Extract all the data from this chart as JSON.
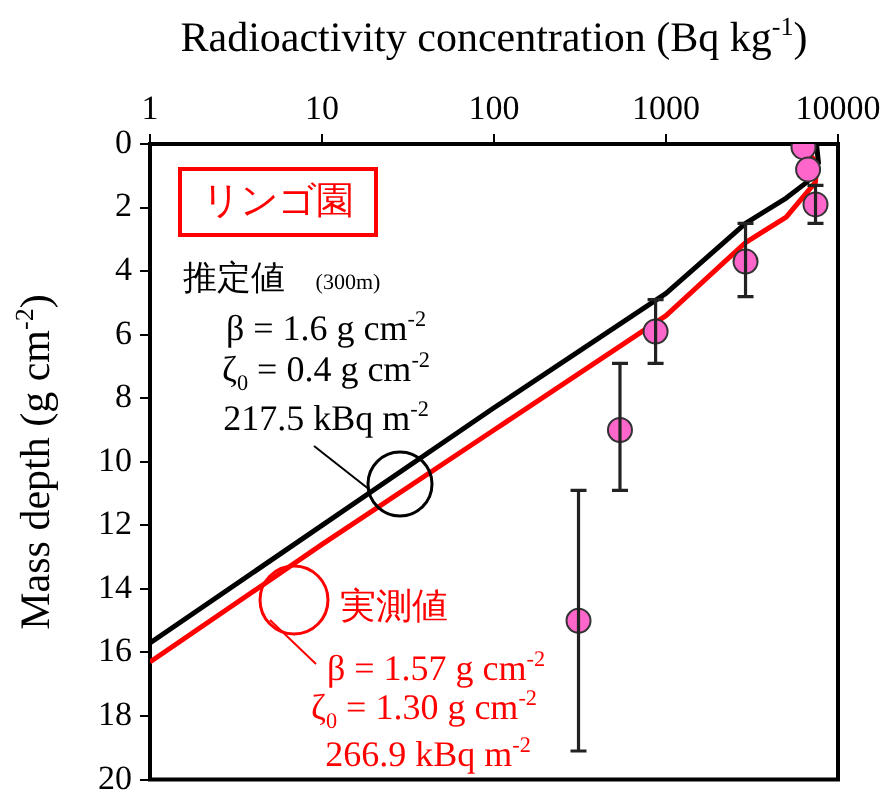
{
  "chart_data": {
    "type": "scatter",
    "xlabel": "Radioactivity concentration (Bq kg$^{-1}$)",
    "ylabel": "Mass depth (g cm$^{-2}$)",
    "log": "x",
    "xlim": [
      1,
      10000
    ],
    "xticks": [
      1,
      10,
      100,
      1000,
      10000
    ],
    "ylim": [
      20,
      0
    ],
    "yticks": [
      0,
      2,
      4,
      6,
      8,
      10,
      12,
      14,
      16,
      18,
      20
    ],
    "grid": false,
    "legend": false,
    "series": [
      {
        "type": "line",
        "marker": "none",
        "color": "#000000",
        "x": [
          1,
          10,
          100,
          1000,
          2900,
          5000,
          6600,
          7700,
          7500
        ],
        "values": [
          15.7,
          12.0,
          8.3,
          4.7,
          2.5,
          1.7,
          1.2,
          0.6,
          0
        ]
      },
      {
        "type": "line",
        "marker": "none",
        "color": "#ff0000",
        "x": [
          1,
          10,
          100,
          1000,
          2900,
          5000,
          7400,
          7500,
          6800,
          6000
        ],
        "values": [
          16.3,
          12.6,
          9.0,
          5.4,
          3.1,
          2.3,
          1.2,
          0.6,
          0.3,
          0
        ]
      },
      {
        "marker": "circle",
        "color": "#ff66cc",
        "x": [
          6300,
          6700,
          7400,
          2900,
          870,
          540,
          310
        ],
        "values": [
          0.1,
          0.8,
          1.9,
          3.7,
          5.9,
          9.0,
          15.0
        ],
        "errors": [
          null,
          null,
          [
            1.3,
            2.5
          ],
          [
            2.5,
            4.8
          ],
          [
            4.9,
            6.9
          ],
          [
            6.9,
            10.9
          ],
          [
            10.9,
            19.1
          ]
        ]
      }
    ],
    "annotations": [
      "リンゴ園",
      "推定値",
      "(300m)",
      "β = 1.6 g cm$^{-2}$",
      "ζ$_{0}$ = 0.4 g cm$^{-2}$",
      "217.5 kBq m$^{-2}$",
      "実測値",
      "β = 1.57 g cm$^{-2}$",
      "ζ$_{0}$ = 1.30 g cm$^{-2}$",
      "266.9 kBq m$^{-2}$"
    ]
  }
}
